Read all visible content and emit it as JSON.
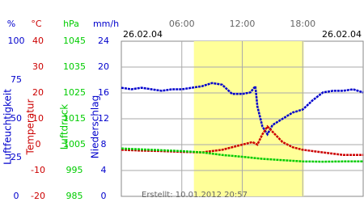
{
  "chart_data": {
    "type": "line",
    "date_left": "26.02.04",
    "date_right": "26.02.04",
    "footer": "Erstellt: 10.01.2012 20:57",
    "xlim": [
      0,
      24
    ],
    "xticks": [
      {
        "value": 6,
        "label": "06:00"
      },
      {
        "value": 12,
        "label": "12:00"
      },
      {
        "value": 18,
        "label": "18:00"
      }
    ],
    "highlight": [
      7.2,
      18.1
    ],
    "highlight_color": "#ffff99",
    "grid": true,
    "axes": [
      {
        "unit": "%",
        "label": "Luftfeuchtigkeit",
        "color": "#0000cc",
        "lim": [
          0,
          100
        ],
        "ticks": [
          100,
          75,
          50,
          25,
          0
        ]
      },
      {
        "unit": "°C",
        "label": "Temperatur",
        "color": "#cc0000",
        "lim": [
          -20,
          40
        ],
        "ticks": [
          40,
          30,
          20,
          10,
          0,
          -10,
          -20
        ]
      },
      {
        "unit": "hPa",
        "label": "Luftdruck",
        "color": "#00cc00",
        "lim": [
          985,
          1045
        ],
        "ticks": [
          1045,
          1035,
          1025,
          1015,
          1005,
          995,
          985
        ]
      },
      {
        "unit": "mm/h",
        "label": "Niederschlag",
        "color": "#0000cc",
        "lim": [
          0,
          24
        ],
        "ticks": [
          24,
          20,
          16,
          12,
          8,
          4,
          0
        ]
      }
    ],
    "series": [
      {
        "axis": 0,
        "color": "#0000cc",
        "x": [
          0,
          1,
          2,
          3,
          4,
          5,
          6,
          7,
          8,
          9,
          10,
          11,
          12,
          12.8,
          13.3,
          13.5,
          14,
          14.5,
          15,
          16,
          17,
          18,
          19,
          20,
          21,
          22,
          23,
          24
        ],
        "values": [
          70,
          69,
          70,
          69,
          68,
          69,
          69,
          70,
          71,
          73,
          72,
          66,
          66,
          67,
          71,
          58,
          45,
          40,
          46,
          50,
          54,
          56,
          62,
          67,
          68,
          68,
          69,
          67
        ]
      },
      {
        "axis": 1,
        "color": "#cc0000",
        "x": [
          0,
          2,
          4,
          6,
          8,
          10,
          12,
          13,
          13.5,
          14,
          14.5,
          15,
          16,
          17,
          18,
          20,
          22,
          24
        ],
        "values": [
          -2,
          -2.3,
          -2.5,
          -2.8,
          -3,
          -2,
          0,
          1,
          0,
          4,
          7,
          5,
          1,
          -1,
          -2,
          -3,
          -4,
          -4
        ]
      },
      {
        "axis": 2,
        "color": "#00cc00",
        "x": [
          0,
          3,
          6,
          8,
          10,
          12,
          14,
          16,
          18,
          20,
          22,
          24
        ],
        "values": [
          1003.5,
          1003,
          1002.5,
          1002,
          1001,
          1000.3,
          999.5,
          999,
          998.5,
          998.4,
          998.5,
          998.5
        ]
      }
    ]
  }
}
